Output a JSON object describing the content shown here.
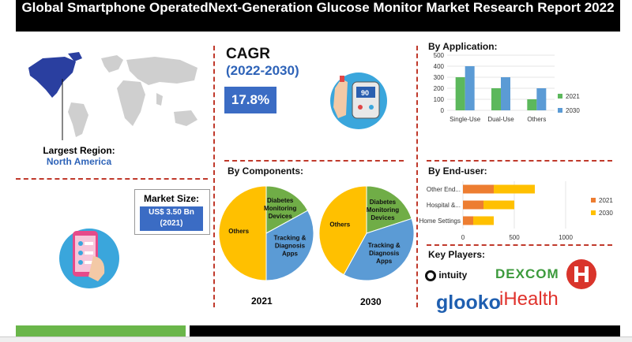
{
  "title": "Global Smartphone OperatedNext-Generation Glucose Monitor Market Research Report 2022",
  "largest_region": {
    "label": "Largest Region:",
    "value": "North America"
  },
  "cagr": {
    "label": "CAGR",
    "years": "(2022-2030)",
    "value": "17.8%"
  },
  "market_size": {
    "label": "Market Size:",
    "value_line1": "US$ 3.50 Bn",
    "value_line2": "(2021)"
  },
  "headings": {
    "by_application": "By Application:",
    "by_components": "By Components:",
    "by_end_user": "By End-user:",
    "key_players": "Key Players:"
  },
  "key_players": [
    "intuity",
    "DEXCOM",
    "glooko",
    "iHealth"
  ],
  "colors": {
    "c2021_bar": "#5cb85c",
    "c2030_bar": "#5b9bd5",
    "c2021_hbar": "#ed7d31",
    "c2030_hbar": "#ffc000",
    "others": "#ffc000",
    "diabetes": "#70ad47",
    "tracking": "#5b9bd5",
    "accent": "#2e63b8"
  },
  "chart_data": [
    {
      "type": "bar",
      "title": "By Application:",
      "categories": [
        "Single-Use",
        "Dual-Use",
        "Others"
      ],
      "series": [
        {
          "name": "2021",
          "values": [
            300,
            200,
            100
          ]
        },
        {
          "name": "2030",
          "values": [
            400,
            300,
            200
          ]
        }
      ],
      "yticks": [
        "0",
        "100",
        "200",
        "300",
        "400",
        "500"
      ],
      "ylim": [
        0,
        500
      ],
      "legend": "right"
    },
    {
      "type": "pie",
      "title": "By Components:",
      "label": "2021",
      "slices": [
        {
          "name": "Diabetes Monitoring Devices",
          "value": 17
        },
        {
          "name": "Tracking & Diagnosis Apps",
          "value": 33
        },
        {
          "name": "Others",
          "value": 50
        }
      ]
    },
    {
      "type": "pie",
      "title": "By Components:",
      "label": "2030",
      "slices": [
        {
          "name": "Diabetes Monitoring Devices",
          "value": 20
        },
        {
          "name": "Tracking & Diagnosis Apps",
          "value": 38
        },
        {
          "name": "Others",
          "value": 42
        }
      ]
    },
    {
      "type": "bar",
      "orientation": "horizontal",
      "title": "By End-user:",
      "categories": [
        "Other End...",
        "Hospital &...",
        "Home Settings"
      ],
      "series": [
        {
          "name": "2021",
          "values": [
            300,
            200,
            100
          ]
        },
        {
          "name": "2030",
          "values": [
            400,
            300,
            200
          ]
        }
      ],
      "xticks": [
        "0",
        "500",
        "1000"
      ],
      "xlim": [
        0,
        1000
      ],
      "legend": "right"
    }
  ]
}
